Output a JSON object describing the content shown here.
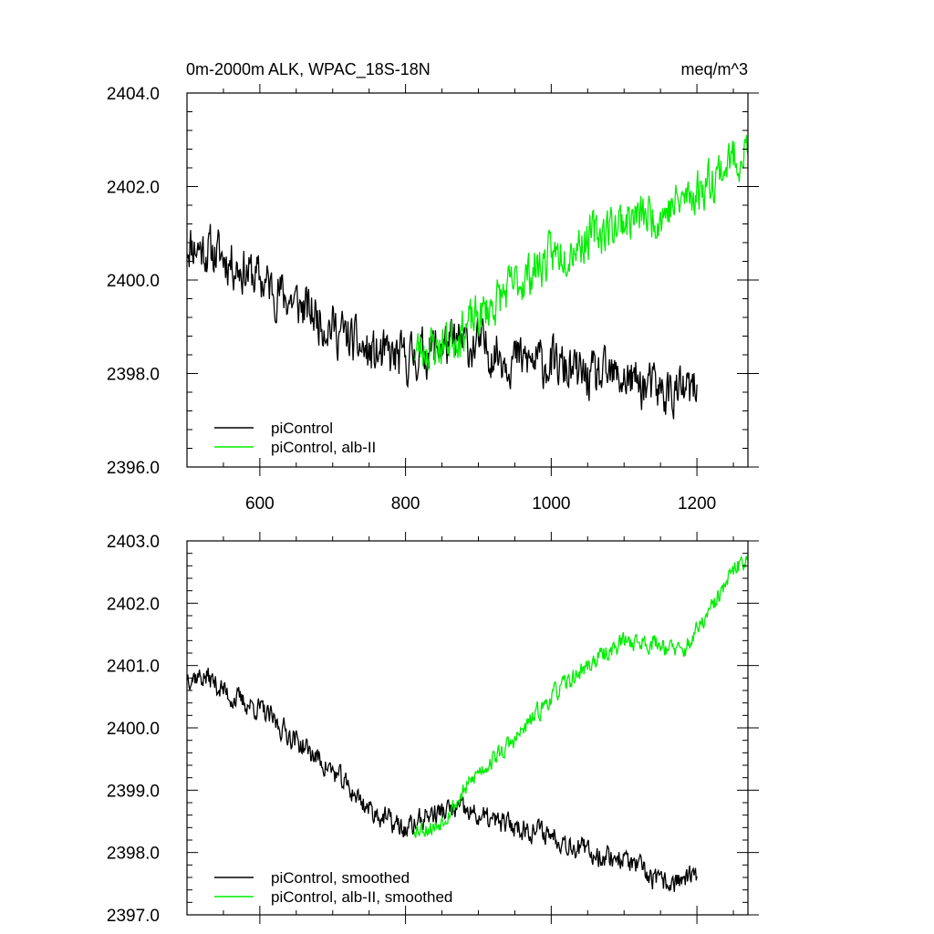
{
  "figure": {
    "title_left": "0m-2000m ALK, WPAC_18S-18N",
    "title_right": "meq/m^3"
  },
  "colors": {
    "control": "#000000",
    "albII": "#00ee00"
  },
  "chart_data": [
    {
      "type": "line",
      "id": "raw",
      "title": "0m-2000m ALK, WPAC_18S-18N",
      "units": "meq/m^3",
      "xlim": [
        500,
        1270
      ],
      "ylim": [
        2396.0,
        2404.0
      ],
      "x_ticks": [
        600,
        800,
        1000,
        1200
      ],
      "x_tick_labels": [
        "600",
        "800",
        "1000",
        "1200"
      ],
      "y_ticks": [
        2396.0,
        2398.0,
        2400.0,
        2402.0,
        2404.0
      ],
      "y_tick_labels": [
        "2396.0",
        "2398.0",
        "2400.0",
        "2402.0",
        "2404.0"
      ],
      "legend_position": "bottom-left",
      "series": [
        {
          "name": "piControl",
          "color": "#000000",
          "x_start": 500,
          "x_end": 1200,
          "anchors": [
            [
              500,
              2400.8
            ],
            [
              550,
              2400.5
            ],
            [
              600,
              2400.0
            ],
            [
              650,
              2399.5
            ],
            [
              700,
              2399.0
            ],
            [
              750,
              2398.4
            ],
            [
              800,
              2398.3
            ],
            [
              850,
              2398.6
            ],
            [
              900,
              2398.6
            ],
            [
              950,
              2398.3
            ],
            [
              1000,
              2398.2
            ],
            [
              1050,
              2397.9
            ],
            [
              1100,
              2397.9
            ],
            [
              1150,
              2397.6
            ],
            [
              1200,
              2397.6
            ]
          ],
          "noise": 0.45,
          "seed": 11
        },
        {
          "name": "piControl, alb-II",
          "color": "#00ee00",
          "x_start": 812,
          "x_end": 1270,
          "anchors": [
            [
              812,
              2398.5
            ],
            [
              850,
              2398.6
            ],
            [
              900,
              2399.2
            ],
            [
              950,
              2399.9
            ],
            [
              1000,
              2400.5
            ],
            [
              1050,
              2400.9
            ],
            [
              1100,
              2401.3
            ],
            [
              1150,
              2401.4
            ],
            [
              1200,
              2401.9
            ],
            [
              1250,
              2402.6
            ],
            [
              1270,
              2402.8
            ]
          ],
          "noise": 0.42,
          "seed": 23
        }
      ]
    },
    {
      "type": "line",
      "id": "smoothed",
      "xlim": [
        500,
        1270
      ],
      "ylim": [
        2397.0,
        2403.0
      ],
      "x_ticks": [
        600,
        800,
        1000,
        1200
      ],
      "y_ticks": [
        2397.0,
        2398.0,
        2399.0,
        2400.0,
        2401.0,
        2402.0,
        2403.0
      ],
      "y_tick_labels": [
        "2397.0",
        "2398.0",
        "2399.0",
        "2400.0",
        "2401.0",
        "2402.0",
        "2403.0"
      ],
      "legend_position": "bottom-left",
      "series": [
        {
          "name": "piControl, smoothed",
          "color": "#000000",
          "x_start": 500,
          "x_end": 1200,
          "anchors": [
            [
              500,
              2400.85
            ],
            [
              530,
              2400.8
            ],
            [
              560,
              2400.5
            ],
            [
              600,
              2400.3
            ],
            [
              650,
              2399.8
            ],
            [
              700,
              2399.3
            ],
            [
              750,
              2398.7
            ],
            [
              800,
              2398.35
            ],
            [
              830,
              2398.6
            ],
            [
              870,
              2398.7
            ],
            [
              920,
              2398.5
            ],
            [
              960,
              2398.4
            ],
            [
              1000,
              2398.3
            ],
            [
              1050,
              2398.0
            ],
            [
              1100,
              2397.9
            ],
            [
              1150,
              2397.5
            ],
            [
              1200,
              2397.6
            ]
          ],
          "noise": 0.16,
          "seed": 37
        },
        {
          "name": "piControl, alb-II, smoothed",
          "color": "#00ee00",
          "x_start": 812,
          "x_end": 1270,
          "anchors": [
            [
              812,
              2398.4
            ],
            [
              840,
              2398.4
            ],
            [
              870,
              2398.8
            ],
            [
              900,
              2399.3
            ],
            [
              950,
              2399.8
            ],
            [
              1000,
              2400.5
            ],
            [
              1050,
              2401.0
            ],
            [
              1100,
              2401.4
            ],
            [
              1150,
              2401.35
            ],
            [
              1180,
              2401.2
            ],
            [
              1220,
              2401.9
            ],
            [
              1250,
              2402.5
            ],
            [
              1270,
              2402.75
            ]
          ],
          "noise": 0.13,
          "seed": 53
        }
      ]
    }
  ]
}
